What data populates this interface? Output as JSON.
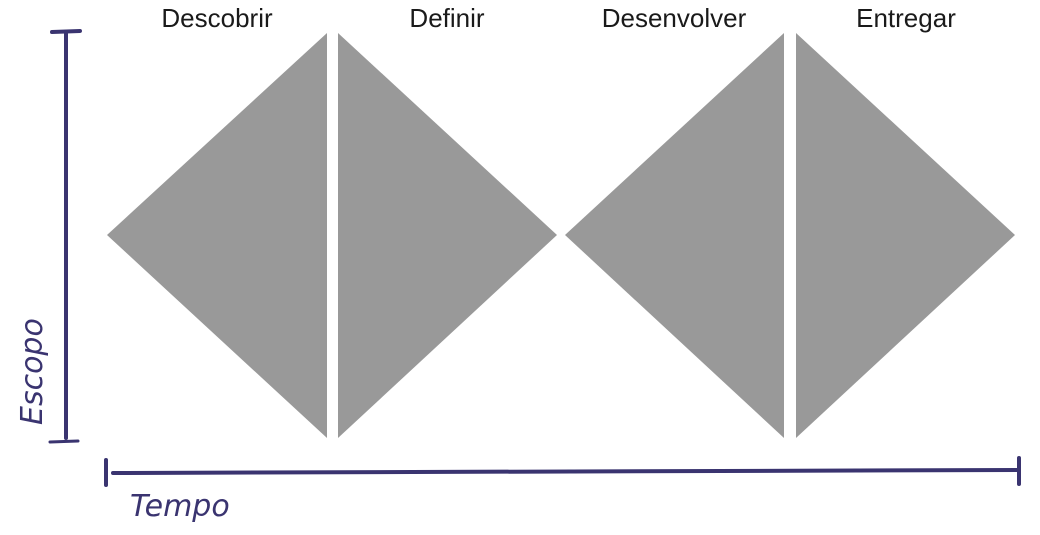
{
  "phases": [
    "Descobrir",
    "Definir",
    "Desenvolver",
    "Entregar"
  ],
  "axes": {
    "y_label": "Escopo",
    "x_label": "Tempo"
  },
  "colors": {
    "shape": "#999999",
    "axis": "#3a3470",
    "text": "#1a1a1a"
  }
}
